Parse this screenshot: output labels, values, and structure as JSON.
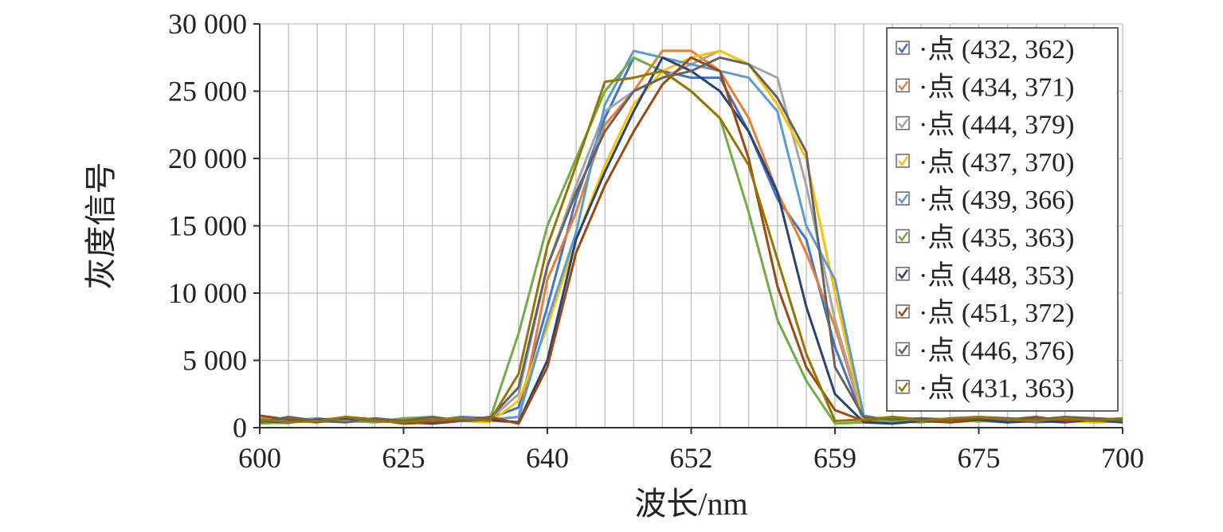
{
  "chart_data": {
    "type": "line",
    "title": "",
    "xlabel": "波长/nm",
    "ylabel": "灰度信号",
    "x_tick_labels": [
      "600",
      "625",
      "640",
      "652",
      "659",
      "675",
      "700"
    ],
    "y_tick_labels": [
      "0",
      "5 000",
      "10 000",
      "15 000",
      "20 000",
      "25 000",
      "30 000"
    ],
    "ylim": [
      0,
      30000
    ],
    "x_ticks_are_categories": true,
    "legend_position": "top-right",
    "grid": true,
    "legend_checkbox_symbol": "☑",
    "legend_prefix": "·点 ",
    "series": [
      {
        "name": "(432, 362)",
        "color": "#4472C4",
        "values": [
          400,
          350,
          700,
          450,
          600,
          400,
          500,
          800,
          700,
          1500,
          9000,
          17000,
          23000,
          27500,
          26500,
          26000,
          26000,
          22000,
          17000,
          14000,
          6000,
          500,
          400,
          600,
          400,
          500,
          600,
          400,
          500,
          700,
          400
        ]
      },
      {
        "name": "(434, 371)",
        "color": "#ED7D31",
        "values": [
          800,
          500,
          450,
          700,
          400,
          550,
          400,
          600,
          500,
          400,
          11000,
          16000,
          22500,
          25000,
          28000,
          28000,
          26500,
          23000,
          17500,
          13000,
          7500,
          600,
          500,
          400,
          600,
          450,
          700,
          500,
          600,
          400,
          450
        ]
      },
      {
        "name": "(444, 379)",
        "color": "#A5A5A5",
        "values": [
          500,
          700,
          600,
          550,
          450,
          700,
          600,
          500,
          600,
          2500,
          12000,
          18000,
          23500,
          25000,
          26000,
          27000,
          28000,
          27000,
          26000,
          18000,
          8000,
          700,
          500,
          700,
          500,
          600,
          500,
          700,
          500,
          600,
          700
        ]
      },
      {
        "name": "(437, 370)",
        "color": "#FFC000",
        "values": [
          300,
          500,
          400,
          600,
          500,
          400,
          600,
          500,
          400,
          2000,
          7500,
          14000,
          19500,
          24000,
          26500,
          27500,
          28000,
          27000,
          24000,
          20000,
          10000,
          500,
          400,
          600,
          400,
          500,
          400,
          600,
          500,
          400,
          500
        ]
      },
      {
        "name": "(439, 366)",
        "color": "#5B9BD5",
        "values": [
          600,
          500,
          700,
          400,
          600,
          500,
          400,
          700,
          600,
          800,
          8000,
          14500,
          24000,
          28000,
          27500,
          27000,
          26500,
          26000,
          23500,
          15000,
          11000,
          900,
          500,
          700,
          500,
          600,
          500,
          700,
          500,
          600,
          500
        ]
      },
      {
        "name": "(435, 363)",
        "color": "#70AD47",
        "values": [
          300,
          400,
          600,
          500,
          400,
          700,
          800,
          500,
          600,
          7000,
          15000,
          20000,
          25000,
          27500,
          26500,
          25000,
          23000,
          16000,
          8000,
          3500,
          300,
          400,
          500,
          400,
          600,
          500,
          400,
          500,
          600,
          500,
          400
        ]
      },
      {
        "name": "(448, 353)",
        "color": "#264478",
        "values": [
          500,
          400,
          600,
          700,
          500,
          400,
          300,
          500,
          600,
          400,
          5000,
          14000,
          19000,
          23500,
          27500,
          26500,
          25000,
          22000,
          17500,
          9000,
          2500,
          400,
          300,
          500,
          400,
          600,
          400,
          500,
          400,
          600,
          400
        ]
      },
      {
        "name": "(451, 372)",
        "color": "#9E480E",
        "values": [
          900,
          600,
          400,
          800,
          600,
          300,
          400,
          500,
          800,
          300,
          4500,
          13000,
          18000,
          22000,
          25500,
          27500,
          26500,
          20000,
          10500,
          4500,
          1300,
          500,
          800,
          600,
          400,
          700,
          600,
          800,
          500,
          700,
          600
        ]
      },
      {
        "name": "(446, 376)",
        "color": "#636363",
        "values": [
          400,
          800,
          500,
          400,
          700,
          500,
          800,
          500,
          700,
          3000,
          12000,
          17500,
          22000,
          25000,
          26000,
          26500,
          27500,
          27000,
          24500,
          20500,
          4500,
          800,
          600,
          700,
          600,
          800,
          700,
          600,
          800,
          700,
          500
        ]
      },
      {
        "name": "(431, 363)",
        "color": "#997300",
        "values": [
          600,
          400,
          500,
          800,
          500,
          400,
          600,
          700,
          500,
          4000,
          13500,
          19500,
          25700,
          26000,
          26500,
          25000,
          23000,
          19500,
          12500,
          5500,
          500,
          600,
          800,
          500,
          700,
          800,
          600,
          500,
          700,
          500,
          700
        ]
      }
    ]
  }
}
